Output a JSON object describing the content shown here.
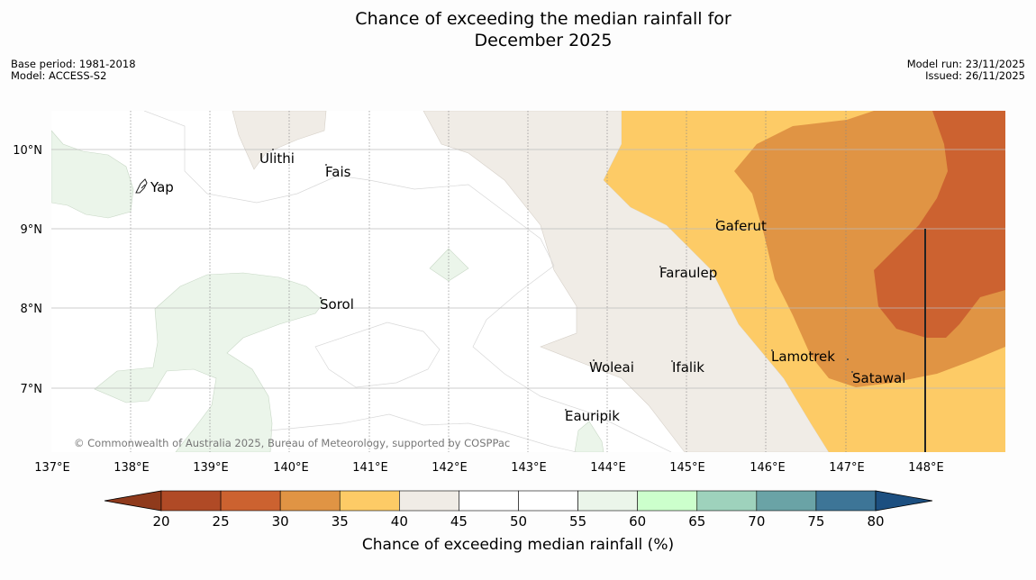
{
  "title": {
    "line1": "Chance of exceeding the median rainfall for",
    "line2": "December 2025"
  },
  "meta": {
    "base_period": "Base period: 1981-2018",
    "model": "Model: ACCESS-S2",
    "model_run": "Model run: 23/11/2025",
    "issued": "Issued: 26/11/2025"
  },
  "map": {
    "copyright": "© Commonwealth of Australia 2025, Bureau of Meteorology, supported by COSPPac",
    "places": [
      "Ulithi",
      "Fais",
      "Yap",
      "Gaferut",
      "Faraulep",
      "Sorol",
      "Lamotrek",
      "Woleai",
      "Ifalik",
      "Satawal",
      "Eauripik"
    ],
    "lon_ticks": [
      "137°E",
      "138°E",
      "139°E",
      "140°E",
      "141°E",
      "142°E",
      "143°E",
      "144°E",
      "145°E",
      "146°E",
      "147°E",
      "148°E"
    ],
    "lat_ticks": [
      "10°N",
      "9°N",
      "8°N",
      "7°N"
    ]
  },
  "colorbar": {
    "ticks": [
      "20",
      "25",
      "30",
      "35",
      "40",
      "45",
      "50",
      "55",
      "60",
      "65",
      "70",
      "75",
      "80"
    ],
    "colors": {
      "under": "#8f3a1c",
      "bins": [
        "#b04a26",
        "#cc6230",
        "#e09444",
        "#fdcb66",
        "#f0ece6",
        "#ffffff",
        "#ffffff",
        "#ebf5ea",
        "#ccffcc",
        "#9ed2bc",
        "#6aa3a6",
        "#3d7597"
      ],
      "over": "#1c4f80"
    },
    "title": "Chance of exceeding median rainfall (%)"
  }
}
